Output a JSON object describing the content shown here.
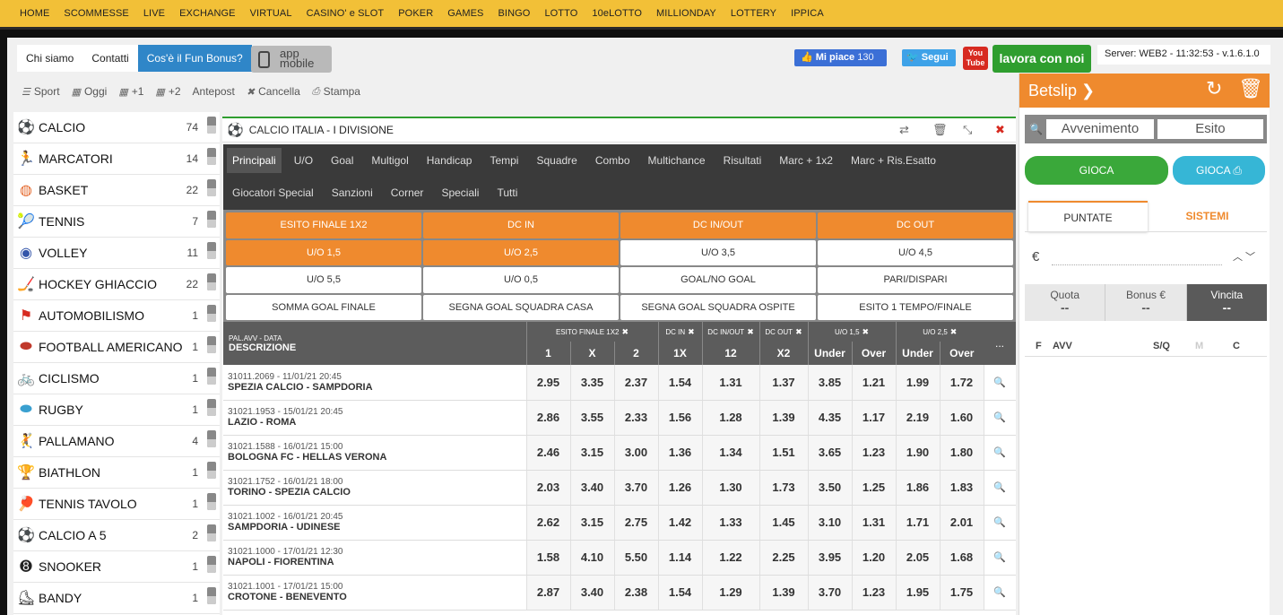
{
  "nav": [
    "HOME",
    "SCOMMESSE",
    "LIVE",
    "EXCHANGE",
    "VIRTUAL",
    "CASINO' e SLOT",
    "POKER",
    "GAMES",
    "BINGO",
    "LOTTO",
    "10eLOTTO",
    "MILLIONDAY",
    "LOTTERY",
    "IPPICA"
  ],
  "links": {
    "chi_siamo": "Chi siamo",
    "contatti": "Contatti",
    "fun_bonus": "Cos'è il Fun Bonus?"
  },
  "app": {
    "line1": "app",
    "line2": "mobile"
  },
  "social": {
    "fb": "Mi piace",
    "fb_count": "130",
    "tw": "Segui",
    "yt1": "You",
    "yt2": "Tube"
  },
  "lavora": "lavora con noi",
  "server": "Server: WEB2 - 11:32:53 - v.1.6.1.0",
  "toolbar": {
    "sport": "Sport",
    "oggi": "Oggi",
    "plus1": "+1",
    "plus2": "+2",
    "antepost": "Antepost",
    "cancella": "Cancella",
    "stampa": "Stampa"
  },
  "sports": [
    {
      "label": "CALCIO",
      "count": "74",
      "icon": "soccer-ball-icon",
      "glyph": "⚽",
      "color": "#2f9e2f"
    },
    {
      "label": "MARCATORI",
      "count": "14",
      "icon": "player-kick-icon",
      "glyph": "🏃",
      "color": "#a0522d"
    },
    {
      "label": "BASKET",
      "count": "22",
      "icon": "basketball-icon",
      "glyph": "◍",
      "color": "#e56a2e"
    },
    {
      "label": "TENNIS",
      "count": "7",
      "icon": "tennis-icon",
      "glyph": "🎾",
      "color": "#3aa0d0"
    },
    {
      "label": "VOLLEY",
      "count": "11",
      "icon": "volleyball-icon",
      "glyph": "◉",
      "color": "#3355aa"
    },
    {
      "label": "HOCKEY GHIACCIO",
      "count": "22",
      "icon": "ice-hockey-icon",
      "glyph": "🏒",
      "color": "#3aa0d0"
    },
    {
      "label": "AUTOMOBILISMO",
      "count": "1",
      "icon": "race-flag-icon",
      "glyph": "⚑",
      "color": "#d72a20"
    },
    {
      "label": "FOOTBALL AMERICANO",
      "count": "1",
      "icon": "american-football-icon",
      "glyph": "⬬",
      "color": "#c0392b"
    },
    {
      "label": "CICLISMO",
      "count": "1",
      "icon": "bicycle-icon",
      "glyph": "🚲",
      "color": "#3aa0d0"
    },
    {
      "label": "RUGBY",
      "count": "1",
      "icon": "rugby-icon",
      "glyph": "⬬",
      "color": "#3aa0d0"
    },
    {
      "label": "PALLAMANO",
      "count": "4",
      "icon": "handball-icon",
      "glyph": "🤾",
      "color": "#e56a2e"
    },
    {
      "label": "BIATHLON",
      "count": "1",
      "icon": "trophy-icon",
      "glyph": "🏆",
      "color": "#222"
    },
    {
      "label": "TENNIS TAVOLO",
      "count": "1",
      "icon": "table-tennis-icon",
      "glyph": "🏓",
      "color": "#222"
    },
    {
      "label": "CALCIO A 5",
      "count": "2",
      "icon": "futsal-icon",
      "glyph": "⚽",
      "color": "#3aa0d0"
    },
    {
      "label": "SNOOKER",
      "count": "1",
      "icon": "billiard-ball-icon",
      "glyph": "➑",
      "color": "#222"
    },
    {
      "label": "BANDY",
      "count": "1",
      "icon": "bandy-icon",
      "glyph": "⛸",
      "color": "#222"
    }
  ],
  "main": {
    "sport": "CALCIO",
    "competition": "ITALIA - I DIVISIONE",
    "tabs_row1": [
      "Principali",
      "U/O",
      "Goal",
      "Multigol",
      "Handicap",
      "Tempi",
      "Squadre",
      "Combo",
      "Multichance",
      "Risultati",
      "Marc + 1x2",
      "Marc + Ris.Esatto"
    ],
    "tabs_row2": [
      "Giocatori Special",
      "Sanzioni",
      "Corner",
      "Speciali",
      "Tutti"
    ],
    "markets": [
      {
        "label": "ESITO FINALE 1X2",
        "active": true
      },
      {
        "label": "DC IN",
        "active": true
      },
      {
        "label": "DC IN/OUT",
        "active": true
      },
      {
        "label": "DC OUT",
        "active": true
      },
      {
        "label": "U/O 1,5",
        "active": true
      },
      {
        "label": "U/O 2,5",
        "active": true
      },
      {
        "label": "U/O 3,5",
        "active": false
      },
      {
        "label": "U/O 4,5",
        "active": false
      },
      {
        "label": "U/O 5,5",
        "active": false
      },
      {
        "label": "U/O 0,5",
        "active": false
      },
      {
        "label": "GOAL/NO GOAL",
        "active": false
      },
      {
        "label": "PARI/DISPARI",
        "active": false
      },
      {
        "label": "SOMMA GOAL FINALE",
        "active": false
      },
      {
        "label": "SEGNA GOAL SQUADRA CASA",
        "active": false
      },
      {
        "label": "SEGNA GOAL SQUADRA OSPITE",
        "active": false
      },
      {
        "label": "ESITO 1 TEMPO/FINALE",
        "active": false
      }
    ],
    "table": {
      "pal_label": "PAL.AVV - DATA",
      "desc_label": "DESCRIZIONE",
      "groups": [
        "ESITO FINALE 1X2",
        "DC IN",
        "DC IN/OUT",
        "DC OUT",
        "U/O 1,5",
        "U/O 2,5"
      ],
      "cols": [
        "1",
        "X",
        "2",
        "1X",
        "12",
        "X2",
        "Under",
        "Over",
        "Under",
        "Over"
      ],
      "more": "...",
      "rows": [
        {
          "date": "31011.2069 - 11/01/21 20:45",
          "match": "SPEZIA CALCIO - SAMPDORIA",
          "odds": [
            "2.95",
            "3.35",
            "2.37",
            "1.54",
            "1.31",
            "1.37",
            "3.85",
            "1.21",
            "1.99",
            "1.72"
          ]
        },
        {
          "date": "31021.1953 - 15/01/21 20:45",
          "match": "LAZIO - ROMA",
          "odds": [
            "2.86",
            "3.55",
            "2.33",
            "1.56",
            "1.28",
            "1.39",
            "4.35",
            "1.17",
            "2.19",
            "1.60"
          ]
        },
        {
          "date": "31021.1588 - 16/01/21 15:00",
          "match": "BOLOGNA FC - HELLAS VERONA",
          "odds": [
            "2.46",
            "3.15",
            "3.00",
            "1.36",
            "1.34",
            "1.51",
            "3.65",
            "1.23",
            "1.90",
            "1.80"
          ]
        },
        {
          "date": "31021.1752 - 16/01/21 18:00",
          "match": "TORINO - SPEZIA CALCIO",
          "odds": [
            "2.03",
            "3.40",
            "3.70",
            "1.26",
            "1.30",
            "1.73",
            "3.50",
            "1.25",
            "1.86",
            "1.83"
          ]
        },
        {
          "date": "31021.1002 - 16/01/21 20:45",
          "match": "SAMPDORIA - UDINESE",
          "odds": [
            "2.62",
            "3.15",
            "2.75",
            "1.42",
            "1.33",
            "1.45",
            "3.10",
            "1.31",
            "1.71",
            "2.01"
          ]
        },
        {
          "date": "31021.1000 - 17/01/21 12:30",
          "match": "NAPOLI - FIORENTINA",
          "odds": [
            "1.58",
            "4.10",
            "5.50",
            "1.14",
            "1.22",
            "2.25",
            "3.95",
            "1.20",
            "2.05",
            "1.68"
          ]
        },
        {
          "date": "31021.1001 - 17/01/21 15:00",
          "match": "CROTONE - BENEVENTO",
          "odds": [
            "2.87",
            "3.40",
            "2.38",
            "1.54",
            "1.29",
            "1.39",
            "3.70",
            "1.23",
            "1.95",
            "1.75"
          ]
        }
      ]
    }
  },
  "betslip": {
    "title": "Betslip",
    "avvenimento": "Avvenimento",
    "esito": "Esito",
    "gioca": "GIOCA",
    "gioca_print": "GIOCA",
    "tab_puntate": "PUNTATE",
    "tab_sistemi": "SISTEMI",
    "euro": "€",
    "quota": "Quota",
    "quota_val": "--",
    "bonus": "Bonus €",
    "bonus_val": "--",
    "vincita": "Vincita",
    "vincita_val": "--",
    "cols": {
      "f": "F",
      "avv": "AVV",
      "sq": "S/Q",
      "m": "M",
      "c": "C"
    }
  }
}
